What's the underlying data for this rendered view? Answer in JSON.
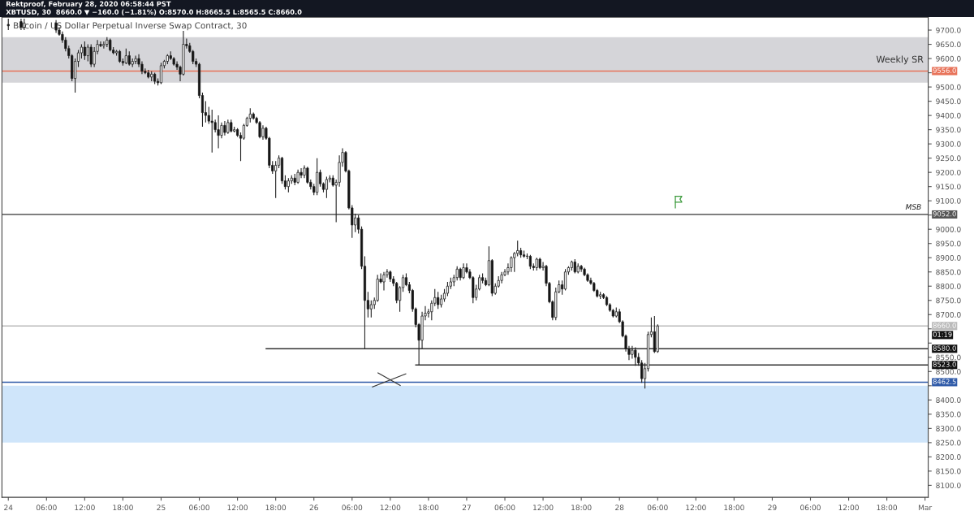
{
  "chart_data": {
    "type": "candlestick",
    "title": "Bitcoin / US Dollar Perpetual Inverse Swap Contract, 30",
    "subtitle": "XBTUSD, 30  8660.0 ▼ −160.0 (−1.81%) O:8570.0 H:8665.5 L:8565.5 C:8660.0",
    "annotations": [
      "Rektproof, February 28, 2020 06:58:44 PST",
      {
        "text": "MSB",
        "x": "2020-03-01T00:30",
        "y": 9052
      },
      "01:19"
    ],
    "series": [
      {
        "x": [
          "2020-02-24T00:00",
          "2020-02-24T02:00",
          "2020-02-24T02:30",
          "2020-02-24T07:30",
          "2020-02-24T08:00",
          "2020-02-24T08:30",
          "2020-02-24T09:00",
          "2020-02-24T09:30",
          "2020-02-24T10:00",
          "2020-02-24T10:30",
          "2020-02-24T11:00",
          "2020-02-24T11:30",
          "2020-02-24T12:00",
          "2020-02-24T12:30",
          "2020-02-24T13:00",
          "2020-02-24T13:30",
          "2020-02-24T14:00",
          "2020-02-24T14:30",
          "2020-02-24T15:00",
          "2020-02-24T15:30",
          "2020-02-24T16:00",
          "2020-02-24T16:30",
          "2020-02-24T17:00",
          "2020-02-24T17:30",
          "2020-02-24T18:00",
          "2020-02-24T18:30",
          "2020-02-24T19:00",
          "2020-02-24T19:30",
          "2020-02-24T20:00",
          "2020-02-24T20:30",
          "2020-02-24T21:00",
          "2020-02-24T21:30",
          "2020-02-24T22:00",
          "2020-02-24T22:30",
          "2020-02-24T23:00",
          "2020-02-24T23:30",
          "2020-02-25T00:00",
          "2020-02-25T00:30",
          "2020-02-25T01:00",
          "2020-02-25T01:30",
          "2020-02-25T02:00",
          "2020-02-25T02:30",
          "2020-02-25T03:00",
          "2020-02-25T03:30",
          "2020-02-25T04:00",
          "2020-02-25T04:30",
          "2020-02-25T05:00",
          "2020-02-25T05:30",
          "2020-02-25T06:00",
          "2020-02-25T06:30",
          "2020-02-25T07:00",
          "2020-02-25T07:30",
          "2020-02-25T08:00",
          "2020-02-25T08:30",
          "2020-02-25T09:00",
          "2020-02-25T09:30",
          "2020-02-25T10:00",
          "2020-02-25T10:30",
          "2020-02-25T11:00",
          "2020-02-25T11:30",
          "2020-02-25T12:00",
          "2020-02-25T12:30",
          "2020-02-25T13:00",
          "2020-02-25T13:30",
          "2020-02-25T14:00",
          "2020-02-25T14:30",
          "2020-02-25T15:00",
          "2020-02-25T15:30",
          "2020-02-25T16:00",
          "2020-02-25T16:30",
          "2020-02-25T17:00",
          "2020-02-25T17:30",
          "2020-02-25T18:00",
          "2020-02-25T18:30",
          "2020-02-25T19:00",
          "2020-02-25T19:30",
          "2020-02-25T20:00",
          "2020-02-25T20:30",
          "2020-02-25T21:00",
          "2020-02-25T21:30",
          "2020-02-25T22:00",
          "2020-02-25T22:30",
          "2020-02-25T23:00",
          "2020-02-25T23:30",
          "2020-02-26T00:00",
          "2020-02-26T00:30",
          "2020-02-26T01:00",
          "2020-02-26T01:30",
          "2020-02-26T02:00",
          "2020-02-26T02:30",
          "2020-02-26T03:00",
          "2020-02-26T03:30",
          "2020-02-26T04:00",
          "2020-02-26T04:30",
          "2020-02-26T05:00",
          "2020-02-26T05:30",
          "2020-02-26T06:00",
          "2020-02-26T06:30",
          "2020-02-26T07:00",
          "2020-02-26T07:30",
          "2020-02-26T08:00",
          "2020-02-26T08:30",
          "2020-02-26T09:00",
          "2020-02-26T09:30",
          "2020-02-26T10:00",
          "2020-02-26T10:30",
          "2020-02-26T11:00",
          "2020-02-26T11:30",
          "2020-02-26T12:00",
          "2020-02-26T12:30",
          "2020-02-26T13:00",
          "2020-02-26T13:30",
          "2020-02-26T14:00",
          "2020-02-26T14:30",
          "2020-02-26T15:00",
          "2020-02-26T15:30",
          "2020-02-26T16:00",
          "2020-02-26T16:30",
          "2020-02-26T17:00",
          "2020-02-26T17:30",
          "2020-02-26T18:00",
          "2020-02-26T18:30",
          "2020-02-26T19:00",
          "2020-02-26T19:30",
          "2020-02-26T20:00",
          "2020-02-26T20:30",
          "2020-02-26T21:00",
          "2020-02-26T21:30",
          "2020-02-26T22:00",
          "2020-02-26T22:30",
          "2020-02-26T23:00",
          "2020-02-26T23:30",
          "2020-02-27T00:00",
          "2020-02-27T00:30",
          "2020-02-27T01:00",
          "2020-02-27T01:30",
          "2020-02-27T02:00",
          "2020-02-27T02:30",
          "2020-02-27T03:00",
          "2020-02-27T03:30",
          "2020-02-27T04:00",
          "2020-02-27T04:30",
          "2020-02-27T05:00",
          "2020-02-27T05:30",
          "2020-02-27T06:00",
          "2020-02-27T06:30",
          "2020-02-27T07:00",
          "2020-02-27T07:30",
          "2020-02-27T08:00",
          "2020-02-27T08:30",
          "2020-02-27T09:00",
          "2020-02-27T09:30",
          "2020-02-27T10:00",
          "2020-02-27T10:30",
          "2020-02-27T11:00",
          "2020-02-27T11:30",
          "2020-02-27T12:00",
          "2020-02-27T12:30",
          "2020-02-27T13:00",
          "2020-02-27T13:30",
          "2020-02-27T14:00",
          "2020-02-27T14:30",
          "2020-02-27T15:00",
          "2020-02-27T15:30",
          "2020-02-27T16:00",
          "2020-02-27T16:30",
          "2020-02-27T17:00",
          "2020-02-27T17:30",
          "2020-02-27T18:00",
          "2020-02-27T18:30",
          "2020-02-27T19:00",
          "2020-02-27T19:30",
          "2020-02-27T20:00",
          "2020-02-27T20:30",
          "2020-02-27T21:00",
          "2020-02-27T21:30",
          "2020-02-27T22:00",
          "2020-02-27T22:30",
          "2020-02-27T23:00",
          "2020-02-27T23:30",
          "2020-02-28T00:00",
          "2020-02-28T00:30",
          "2020-02-28T01:00",
          "2020-02-28T01:30",
          "2020-02-28T02:00",
          "2020-02-28T02:30",
          "2020-02-28T03:00",
          "2020-02-28T03:30",
          "2020-02-28T04:00",
          "2020-02-28T04:30",
          "2020-02-28T05:00",
          "2020-02-28T05:30",
          "2020-02-28T06:00"
        ],
        "ohlc": [
          [
            9720,
            9740,
            9700,
            9715
          ],
          [
            9730,
            9740,
            9700,
            9710
          ],
          [
            9710,
            9740,
            9700,
            9725
          ],
          [
            9725,
            9735,
            9690,
            9700
          ],
          [
            9700,
            9710,
            9680,
            9685
          ],
          [
            9685,
            9695,
            9655,
            9665
          ],
          [
            9665,
            9675,
            9625,
            9635
          ],
          [
            9635,
            9645,
            9600,
            9610
          ],
          [
            9610,
            9615,
            9520,
            9530
          ],
          [
            9530,
            9600,
            9480,
            9590
          ],
          [
            9590,
            9630,
            9570,
            9620
          ],
          [
            9620,
            9650,
            9600,
            9640
          ],
          [
            9640,
            9660,
            9595,
            9610
          ],
          [
            9610,
            9650,
            9590,
            9640
          ],
          [
            9640,
            9650,
            9570,
            9580
          ],
          [
            9580,
            9640,
            9570,
            9625
          ],
          [
            9625,
            9665,
            9615,
            9650
          ],
          [
            9650,
            9660,
            9640,
            9645
          ],
          [
            9645,
            9660,
            9635,
            9650
          ],
          [
            9650,
            9675,
            9640,
            9665
          ],
          [
            9665,
            9670,
            9625,
            9630
          ],
          [
            9630,
            9640,
            9615,
            9620
          ],
          [
            9620,
            9630,
            9610,
            9625
          ],
          [
            9625,
            9630,
            9585,
            9590
          ],
          [
            9590,
            9600,
            9575,
            9585
          ],
          [
            9585,
            9635,
            9580,
            9610
          ],
          [
            9610,
            9625,
            9575,
            9580
          ],
          [
            9580,
            9600,
            9570,
            9590
          ],
          [
            9590,
            9610,
            9580,
            9600
          ],
          [
            9600,
            9615,
            9570,
            9580
          ],
          [
            9580,
            9590,
            9545,
            9555
          ],
          [
            9555,
            9565,
            9545,
            9550
          ],
          [
            9550,
            9560,
            9530,
            9535
          ],
          [
            9535,
            9555,
            9520,
            9545
          ],
          [
            9545,
            9550,
            9510,
            9520
          ],
          [
            9520,
            9530,
            9505,
            9515
          ],
          [
            9515,
            9585,
            9510,
            9575
          ],
          [
            9575,
            9595,
            9565,
            9590
          ],
          [
            9590,
            9615,
            9580,
            9610
          ],
          [
            9610,
            9625,
            9595,
            9600
          ],
          [
            9600,
            9605,
            9575,
            9580
          ],
          [
            9580,
            9590,
            9560,
            9570
          ],
          [
            9570,
            9575,
            9520,
            9545
          ],
          [
            9545,
            9697,
            9540,
            9650
          ],
          [
            9650,
            9670,
            9635,
            9645
          ],
          [
            9645,
            9655,
            9620,
            9625
          ],
          [
            9625,
            9630,
            9580,
            9590
          ],
          [
            9590,
            9600,
            9570,
            9580
          ],
          [
            9580,
            9585,
            9460,
            9470
          ],
          [
            9470,
            9480,
            9360,
            9410
          ],
          [
            9410,
            9450,
            9375,
            9400
          ],
          [
            9400,
            9430,
            9370,
            9380
          ],
          [
            9380,
            9420,
            9270,
            9375
          ],
          [
            9375,
            9385,
            9340,
            9350
          ],
          [
            9350,
            9400,
            9285,
            9330
          ],
          [
            9330,
            9375,
            9320,
            9365
          ],
          [
            9365,
            9380,
            9330,
            9340
          ],
          [
            9340,
            9385,
            9335,
            9375
          ],
          [
            9375,
            9385,
            9340,
            9345
          ],
          [
            9345,
            9360,
            9340,
            9350
          ],
          [
            9350,
            9355,
            9325,
            9330
          ],
          [
            9330,
            9340,
            9240,
            9320
          ],
          [
            9320,
            9370,
            9315,
            9365
          ],
          [
            9365,
            9395,
            9360,
            9390
          ],
          [
            9390,
            9425,
            9375,
            9405
          ],
          [
            9405,
            9410,
            9385,
            9390
          ],
          [
            9390,
            9395,
            9370,
            9375
          ],
          [
            9375,
            9380,
            9320,
            9325
          ],
          [
            9325,
            9365,
            9315,
            9355
          ],
          [
            9355,
            9360,
            9315,
            9320
          ],
          [
            9320,
            9325,
            9215,
            9225
          ],
          [
            9225,
            9240,
            9195,
            9205
          ],
          [
            9205,
            9240,
            9110,
            9225
          ],
          [
            9225,
            9260,
            9215,
            9250
          ],
          [
            9250,
            9255,
            9160,
            9170
          ],
          [
            9170,
            9190,
            9140,
            9150
          ],
          [
            9150,
            9180,
            9130,
            9170
          ],
          [
            9170,
            9190,
            9160,
            9180
          ],
          [
            9180,
            9195,
            9155,
            9165
          ],
          [
            9165,
            9210,
            9160,
            9200
          ],
          [
            9200,
            9215,
            9180,
            9190
          ],
          [
            9190,
            9225,
            9180,
            9215
          ],
          [
            9215,
            9220,
            9160,
            9165
          ],
          [
            9165,
            9175,
            9140,
            9150
          ],
          [
            9150,
            9160,
            9120,
            9130
          ],
          [
            9130,
            9250,
            9120,
            9200
          ],
          [
            9200,
            9210,
            9150,
            9160
          ],
          [
            9160,
            9165,
            9130,
            9140
          ],
          [
            9140,
            9185,
            9110,
            9175
          ],
          [
            9175,
            9190,
            9165,
            9180
          ],
          [
            9180,
            9190,
            9150,
            9155
          ],
          [
            9155,
            9175,
            9025,
            9165
          ],
          [
            9165,
            9260,
            9150,
            9235
          ],
          [
            9235,
            9285,
            9220,
            9270
          ],
          [
            9270,
            9275,
            9200,
            9205
          ],
          [
            9205,
            9210,
            9070,
            9075
          ],
          [
            9075,
            9085,
            8970,
            9015
          ],
          [
            9015,
            9055,
            8990,
            9040
          ],
          [
            9040,
            9050,
            8985,
            9000
          ],
          [
            9000,
            9010,
            8860,
            8870
          ],
          [
            8870,
            8905,
            8580,
            8750
          ],
          [
            8750,
            8780,
            8690,
            8720
          ],
          [
            8720,
            8750,
            8690,
            8735
          ],
          [
            8735,
            8760,
            8720,
            8750
          ],
          [
            8750,
            8840,
            8745,
            8825
          ],
          [
            8825,
            8845,
            8810,
            8815
          ],
          [
            8815,
            8850,
            8785,
            8840
          ],
          [
            8840,
            8860,
            8830,
            8850
          ],
          [
            8850,
            8855,
            8815,
            8825
          ],
          [
            8825,
            8835,
            8800,
            8810
          ],
          [
            8810,
            8815,
            8740,
            8750
          ],
          [
            8750,
            8800,
            8710,
            8795
          ],
          [
            8795,
            8840,
            8780,
            8830
          ],
          [
            8830,
            8845,
            8800,
            8805
          ],
          [
            8805,
            8815,
            8775,
            8785
          ],
          [
            8785,
            8790,
            8710,
            8720
          ],
          [
            8720,
            8725,
            8655,
            8665
          ],
          [
            8665,
            8670,
            8523,
            8610
          ],
          [
            8610,
            8710,
            8580,
            8695
          ],
          [
            8695,
            8730,
            8680,
            8705
          ],
          [
            8705,
            8720,
            8690,
            8710
          ],
          [
            8710,
            8750,
            8680,
            8740
          ],
          [
            8740,
            8790,
            8730,
            8760
          ],
          [
            8760,
            8780,
            8720,
            8735
          ],
          [
            8735,
            8770,
            8725,
            8755
          ],
          [
            8755,
            8790,
            8745,
            8775
          ],
          [
            8775,
            8815,
            8765,
            8800
          ],
          [
            8800,
            8830,
            8790,
            8815
          ],
          [
            8815,
            8840,
            8800,
            8830
          ],
          [
            8830,
            8870,
            8820,
            8860
          ],
          [
            8860,
            8865,
            8820,
            8830
          ],
          [
            8830,
            8880,
            8825,
            8865
          ],
          [
            8865,
            8880,
            8845,
            8850
          ],
          [
            8850,
            8860,
            8825,
            8830
          ],
          [
            8830,
            8835,
            8740,
            8760
          ],
          [
            8760,
            8805,
            8750,
            8790
          ],
          [
            8790,
            8840,
            8785,
            8830
          ],
          [
            8830,
            8845,
            8810,
            8820
          ],
          [
            8820,
            8830,
            8800,
            8805
          ],
          [
            8805,
            8940,
            8800,
            8890
          ],
          [
            8890,
            8895,
            8765,
            8775
          ],
          [
            8775,
            8810,
            8770,
            8800
          ],
          [
            8800,
            8835,
            8795,
            8820
          ],
          [
            8820,
            8850,
            8810,
            8840
          ],
          [
            8840,
            8860,
            8835,
            8850
          ],
          [
            8850,
            8880,
            8840,
            8865
          ],
          [
            8865,
            8905,
            8850,
            8900
          ],
          [
            8900,
            8920,
            8850,
            8915
          ],
          [
            8915,
            8960,
            8905,
            8925
          ],
          [
            8925,
            8935,
            8900,
            8910
          ],
          [
            8910,
            8925,
            8900,
            8905
          ],
          [
            8905,
            8915,
            8895,
            8905
          ],
          [
            8905,
            8910,
            8860,
            8870
          ],
          [
            8870,
            8880,
            8855,
            8865
          ],
          [
            8865,
            8900,
            8855,
            8895
          ],
          [
            8895,
            8900,
            8860,
            8865
          ],
          [
            8865,
            8885,
            8855,
            8870
          ],
          [
            8870,
            8875,
            8800,
            8810
          ],
          [
            8810,
            8815,
            8740,
            8745
          ],
          [
            8745,
            8750,
            8680,
            8690
          ],
          [
            8690,
            8795,
            8680,
            8780
          ],
          [
            8780,
            8820,
            8775,
            8805
          ],
          [
            8805,
            8820,
            8770,
            8790
          ],
          [
            8790,
            8860,
            8785,
            8850
          ],
          [
            8850,
            8870,
            8840,
            8865
          ],
          [
            8865,
            8890,
            8855,
            8885
          ],
          [
            8885,
            8895,
            8845,
            8850
          ],
          [
            8850,
            8880,
            8845,
            8870
          ],
          [
            8870,
            8875,
            8850,
            8860
          ],
          [
            8860,
            8865,
            8835,
            8840
          ],
          [
            8840,
            8845,
            8815,
            8820
          ],
          [
            8820,
            8830,
            8805,
            8810
          ],
          [
            8810,
            8815,
            8780,
            8785
          ],
          [
            8785,
            8790,
            8760,
            8765
          ],
          [
            8765,
            8780,
            8755,
            8770
          ],
          [
            8770,
            8775,
            8755,
            8760
          ],
          [
            8760,
            8765,
            8730,
            8735
          ],
          [
            8735,
            8740,
            8710,
            8715
          ],
          [
            8715,
            8720,
            8690,
            8695
          ],
          [
            8695,
            8725,
            8690,
            8710
          ],
          [
            8710,
            8720,
            8670,
            8675
          ],
          [
            8675,
            8680,
            8620,
            8625
          ],
          [
            8625,
            8630,
            8570,
            8580
          ],
          [
            8580,
            8590,
            8540,
            8560
          ],
          [
            8560,
            8590,
            8545,
            8575
          ],
          [
            8575,
            8585,
            8520,
            8550
          ],
          [
            8550,
            8565,
            8520,
            8530
          ],
          [
            8530,
            8540,
            8460,
            8475
          ],
          [
            8475,
            8530,
            8440,
            8510
          ],
          [
            8510,
            8640,
            8500,
            8630
          ],
          [
            8630,
            8690,
            8620,
            8640
          ],
          [
            8640,
            8695,
            8565,
            8570
          ],
          [
            8570,
            8665.5,
            8565.5,
            8660
          ]
        ]
      },
      {
        "type": "line",
        "x": [
          "2020-02-25T16:30",
          "2020-03-01T00:30"
        ],
        "values": [
          8580,
          8580
        ],
        "value_labels": [
          null,
          "8580.0"
        ],
        "color": "#333333"
      },
      {
        "type": "line",
        "x": [
          "2020-02-26T16:00",
          "2020-03-01T00:30"
        ],
        "values": [
          8523,
          8523
        ],
        "value_labels": [
          null,
          "8523.0"
        ],
        "color": "#333333"
      }
    ],
    "ref_lines": [
      {
        "axis": "y",
        "value": 9556,
        "label": "9556.0",
        "color": "#e8735a"
      },
      {
        "axis": "y",
        "value": 9052,
        "label": "9052.0",
        "color": "#555555"
      },
      {
        "axis": "y",
        "value": 8660,
        "label": "8660.0",
        "color": "#bbbbbb"
      },
      {
        "axis": "y",
        "value": 8462.5,
        "label": "8462.5",
        "color": "#2f5aa8"
      }
    ],
    "bands": [
      {
        "axis": "y",
        "from": 9515,
        "to": 9675,
        "label": "Weekly SR",
        "color": "#d5d5d9"
      },
      {
        "axis": "y",
        "from": 8250,
        "to": 8450,
        "label": null,
        "color": "#cfe5fa"
      }
    ],
    "xlim": [
      "2020-02-23T23:00",
      "2020-03-01T00:30"
    ],
    "xticks": [
      {
        "value": "2020-02-24T00:00",
        "label": "24"
      },
      {
        "value": "2020-02-24T06:00",
        "label": "06:00"
      },
      {
        "value": "2020-02-24T12:00",
        "label": "12:00"
      },
      {
        "value": "2020-02-24T18:00",
        "label": "18:00"
      },
      {
        "value": "2020-02-25T00:00",
        "label": "25"
      },
      {
        "value": "2020-02-25T06:00",
        "label": "06:00"
      },
      {
        "value": "2020-02-25T12:00",
        "label": "12:00"
      },
      {
        "value": "2020-02-25T18:00",
        "label": "18:00"
      },
      {
        "value": "2020-02-26T00:00",
        "label": "26"
      },
      {
        "value": "2020-02-26T06:00",
        "label": "06:00"
      },
      {
        "value": "2020-02-26T12:00",
        "label": "12:00"
      },
      {
        "value": "2020-02-26T18:00",
        "label": "18:00"
      },
      {
        "value": "2020-02-27T00:00",
        "label": "27"
      },
      {
        "value": "2020-02-27T06:00",
        "label": "06:00"
      },
      {
        "value": "2020-02-27T12:00",
        "label": "12:00"
      },
      {
        "value": "2020-02-27T18:00",
        "label": "18:00"
      },
      {
        "value": "2020-02-28T00:00",
        "label": "28"
      },
      {
        "value": "2020-02-28T06:00",
        "label": "06:00"
      },
      {
        "value": "2020-02-28T12:00",
        "label": "12:00"
      },
      {
        "value": "2020-02-28T18:00",
        "label": "18:00"
      },
      {
        "value": "2020-02-29T00:00",
        "label": "29"
      },
      {
        "value": "2020-02-29T06:00",
        "label": "06:00"
      },
      {
        "value": "2020-02-29T12:00",
        "label": "12:00"
      },
      {
        "value": "2020-02-29T18:00",
        "label": "18:00"
      },
      {
        "value": "2020-03-01T00:00",
        "label": "Mar"
      }
    ],
    "ylim": [
      8058,
      9745
    ],
    "yticks": [
      {
        "value": 8100,
        "label": "8100.0"
      },
      {
        "value": 8150,
        "label": "8150.0"
      },
      {
        "value": 8200,
        "label": "8200.0"
      },
      {
        "value": 8250,
        "label": "8250.0"
      },
      {
        "value": 8300,
        "label": "8300.0"
      },
      {
        "value": 8350,
        "label": "8350.0"
      },
      {
        "value": 8400,
        "label": "8400.0"
      },
      {
        "value": 8450,
        "label": null
      },
      {
        "value": 8500,
        "label": "8500.0"
      },
      {
        "value": 8550,
        "label": "8550.0"
      },
      {
        "value": 8600,
        "label": null
      },
      {
        "value": 8650,
        "label": null
      },
      {
        "value": 8700,
        "label": "8700.0"
      },
      {
        "value": 8750,
        "label": "8750.0"
      },
      {
        "value": 8800,
        "label": "8800.0"
      },
      {
        "value": 8850,
        "label": "8850.0"
      },
      {
        "value": 8900,
        "label": "8900.0"
      },
      {
        "value": 8950,
        "label": "8950.0"
      },
      {
        "value": 9000,
        "label": "9000.0"
      },
      {
        "value": 9050,
        "label": null
      },
      {
        "value": 9100,
        "label": "9100.0"
      },
      {
        "value": 9150,
        "label": "9150.0"
      },
      {
        "value": 9200,
        "label": "9200.0"
      },
      {
        "value": 9250,
        "label": "9250.0"
      },
      {
        "value": 9300,
        "label": "9300.0"
      },
      {
        "value": 9350,
        "label": "9350.0"
      },
      {
        "value": 9400,
        "label": "9400.0"
      },
      {
        "value": 9450,
        "label": "9450.0"
      },
      {
        "value": 9500,
        "label": "9500.0"
      },
      {
        "value": 9550,
        "label": null
      },
      {
        "value": 9600,
        "label": "9600.0"
      },
      {
        "value": 9650,
        "label": "9650.0"
      },
      {
        "value": 9700,
        "label": "9700.0"
      }
    ],
    "grid": false,
    "legend": false
  }
}
